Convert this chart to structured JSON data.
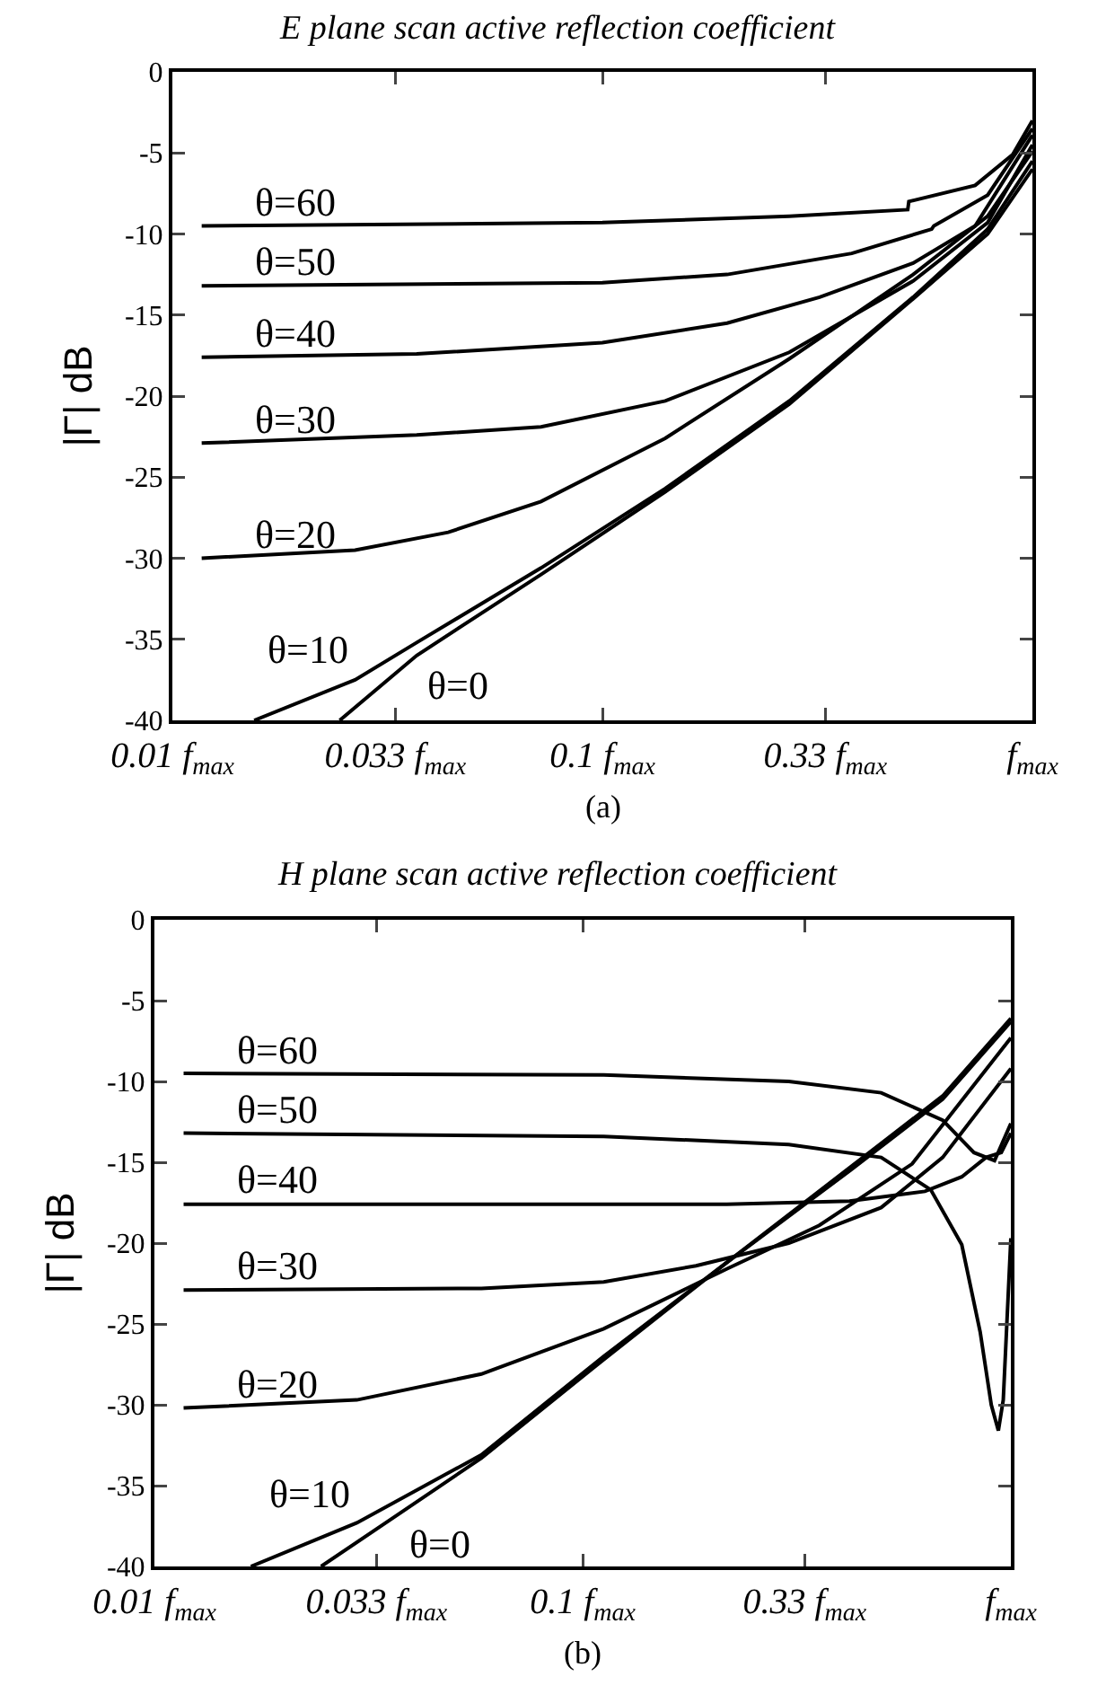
{
  "chart_data": [
    {
      "type": "line",
      "title": "E plane scan active reflection coefficient",
      "ylabel": "|Γ| dB",
      "log": "x",
      "grid": false,
      "legend": false,
      "marker": "none",
      "line_style": "solid",
      "xlim": [
        0.01,
        1
      ],
      "xticks": [
        {
          "value": 0.01,
          "label": "0.01 f$_{max}$"
        },
        {
          "value": 0.033,
          "label": "0.033 f$_{max}$"
        },
        {
          "value": 0.1,
          "label": "0.1 f$_{max}$"
        },
        {
          "value": 0.33,
          "label": "0.33 f$_{max}$"
        },
        {
          "value": 1,
          "label": "f$_{max}$"
        }
      ],
      "ylim": [
        -40,
        0
      ],
      "yticks": [
        0,
        -5,
        -10,
        -15,
        -20,
        -25,
        -30,
        -35,
        -40
      ],
      "series": [
        {
          "name": "θ=60",
          "color": "#000000",
          "x": [
            0.0117,
            0.1,
            0.272,
            0.513,
            0.516,
            0.736,
            0.9,
            1
          ],
          "values": [
            -9.5,
            -9.3,
            -8.9,
            -8.5,
            -8.0,
            -7.0,
            -5.1,
            -3.0
          ]
        },
        {
          "name": "θ=50",
          "color": "#000000",
          "x": [
            0.0117,
            0.1,
            0.195,
            0.38,
            0.583,
            0.59,
            0.787,
            1
          ],
          "values": [
            -13.2,
            -13.0,
            -12.5,
            -11.2,
            -9.7,
            -9.5,
            -7.6,
            -3.5
          ]
        },
        {
          "name": "θ=40",
          "color": "#000000",
          "x": [
            0.0117,
            0.037,
            0.1,
            0.195,
            0.32,
            0.528,
            0.736,
            1
          ],
          "values": [
            -17.6,
            -17.4,
            -16.7,
            -15.5,
            -13.9,
            -11.8,
            -9.5,
            -3.9
          ]
        },
        {
          "name": "θ=30",
          "color": "#000000",
          "x": [
            0.0117,
            0.037,
            0.072,
            0.14,
            0.272,
            0.528,
            0.787,
            1
          ],
          "values": [
            -22.9,
            -22.4,
            -21.9,
            -20.3,
            -17.3,
            -12.9,
            -9.3,
            -4.5
          ]
        },
        {
          "name": "θ=20",
          "color": "#000000",
          "x": [
            0.0117,
            0.0266,
            0.0438,
            0.072,
            0.14,
            0.272,
            0.528,
            0.787,
            1
          ],
          "values": [
            -30.0,
            -29.5,
            -28.4,
            -26.5,
            -22.6,
            -17.7,
            -12.5,
            -8.9,
            -4.9
          ]
        },
        {
          "name": "θ=10",
          "color": "#000000",
          "x": [
            0.0155,
            0.0266,
            0.037,
            0.072,
            0.14,
            0.272,
            0.528,
            0.787,
            1
          ],
          "values": [
            -40,
            -37.5,
            -35.2,
            -30.6,
            -25.7,
            -20.3,
            -13.9,
            -9.7,
            -5.5
          ]
        },
        {
          "name": "θ=0",
          "color": "#000000",
          "x": [
            0.0245,
            0.037,
            0.072,
            0.14,
            0.272,
            0.528,
            0.787,
            1
          ],
          "values": [
            -40,
            -36.0,
            -31.0,
            -25.9,
            -20.5,
            -14.0,
            -10.0,
            -6.0
          ]
        }
      ],
      "annotations": [
        "(a)"
      ]
    },
    {
      "type": "line",
      "title": "H plane scan active reflection coefficient",
      "ylabel": "|Γ| dB",
      "log": "x",
      "grid": false,
      "legend": false,
      "marker": "none",
      "line_style": "solid",
      "xlim": [
        0.01,
        1
      ],
      "xticks": [
        {
          "value": 0.01,
          "label": "0.01 f$_{max}$"
        },
        {
          "value": 0.033,
          "label": "0.033 f$_{max}$"
        },
        {
          "value": 0.1,
          "label": "0.1 f$_{max}$"
        },
        {
          "value": 0.33,
          "label": "0.33 f$_{max}$"
        },
        {
          "value": 1,
          "label": "f$_{max}$"
        }
      ],
      "ylim": [
        -40,
        0
      ],
      "yticks": [
        0,
        -5,
        -10,
        -15,
        -20,
        -25,
        -30,
        -35,
        -40
      ],
      "series": [
        {
          "name": "θ=60",
          "color": "#000000",
          "x": [
            0.0117,
            0.112,
            0.303,
            0.498,
            0.693,
            0.82,
            0.916,
            1
          ],
          "values": [
            -9.5,
            -9.6,
            -10.0,
            -10.7,
            -12.4,
            -14.4,
            -14.9,
            -12.6
          ]
        },
        {
          "name": "θ=50",
          "color": "#000000",
          "x": [
            0.0117,
            0.112,
            0.303,
            0.498,
            0.65,
            0.768,
            0.848,
            0.9,
            0.935,
            0.96,
            1
          ],
          "values": [
            -13.2,
            -13.4,
            -13.9,
            -14.7,
            -16.7,
            -20.1,
            -25.5,
            -30.0,
            -31.6,
            -29.7,
            -19.7
          ]
        },
        {
          "name": "θ=40",
          "color": "#000000",
          "x": [
            0.0117,
            0.217,
            0.42,
            0.63,
            0.768,
            0.875,
            0.95,
            1
          ],
          "values": [
            -17.6,
            -17.6,
            -17.4,
            -16.8,
            -15.9,
            -14.7,
            -14.4,
            -13.2
          ]
        },
        {
          "name": "θ=30",
          "color": "#000000",
          "x": [
            0.0117,
            0.058,
            0.112,
            0.184,
            0.303,
            0.498,
            0.693,
            1
          ],
          "values": [
            -22.9,
            -22.8,
            -22.4,
            -21.4,
            -20.0,
            -17.8,
            -14.7,
            -9.2
          ]
        },
        {
          "name": "θ=20",
          "color": "#000000",
          "x": [
            0.0117,
            0.0297,
            0.058,
            0.112,
            0.217,
            0.357,
            0.588,
            1
          ],
          "values": [
            -30.2,
            -29.7,
            -28.1,
            -25.3,
            -21.6,
            -18.9,
            -15.1,
            -7.3
          ]
        },
        {
          "name": "θ=10",
          "color": "#000000",
          "x": [
            0.0168,
            0.0297,
            0.058,
            0.112,
            0.217,
            0.422,
            0.693,
            1
          ],
          "values": [
            -40,
            -37.3,
            -33.1,
            -27.0,
            -21.2,
            -15.5,
            -11.1,
            -6.3
          ]
        },
        {
          "name": "θ=0",
          "color": "#000000",
          "x": [
            0.0245,
            0.037,
            0.058,
            0.112,
            0.217,
            0.422,
            0.693,
            1
          ],
          "values": [
            -40,
            -36.8,
            -33.3,
            -27.2,
            -21.2,
            -15.3,
            -10.9,
            -6.1
          ]
        }
      ],
      "annotations": [
        "(b)"
      ]
    }
  ]
}
